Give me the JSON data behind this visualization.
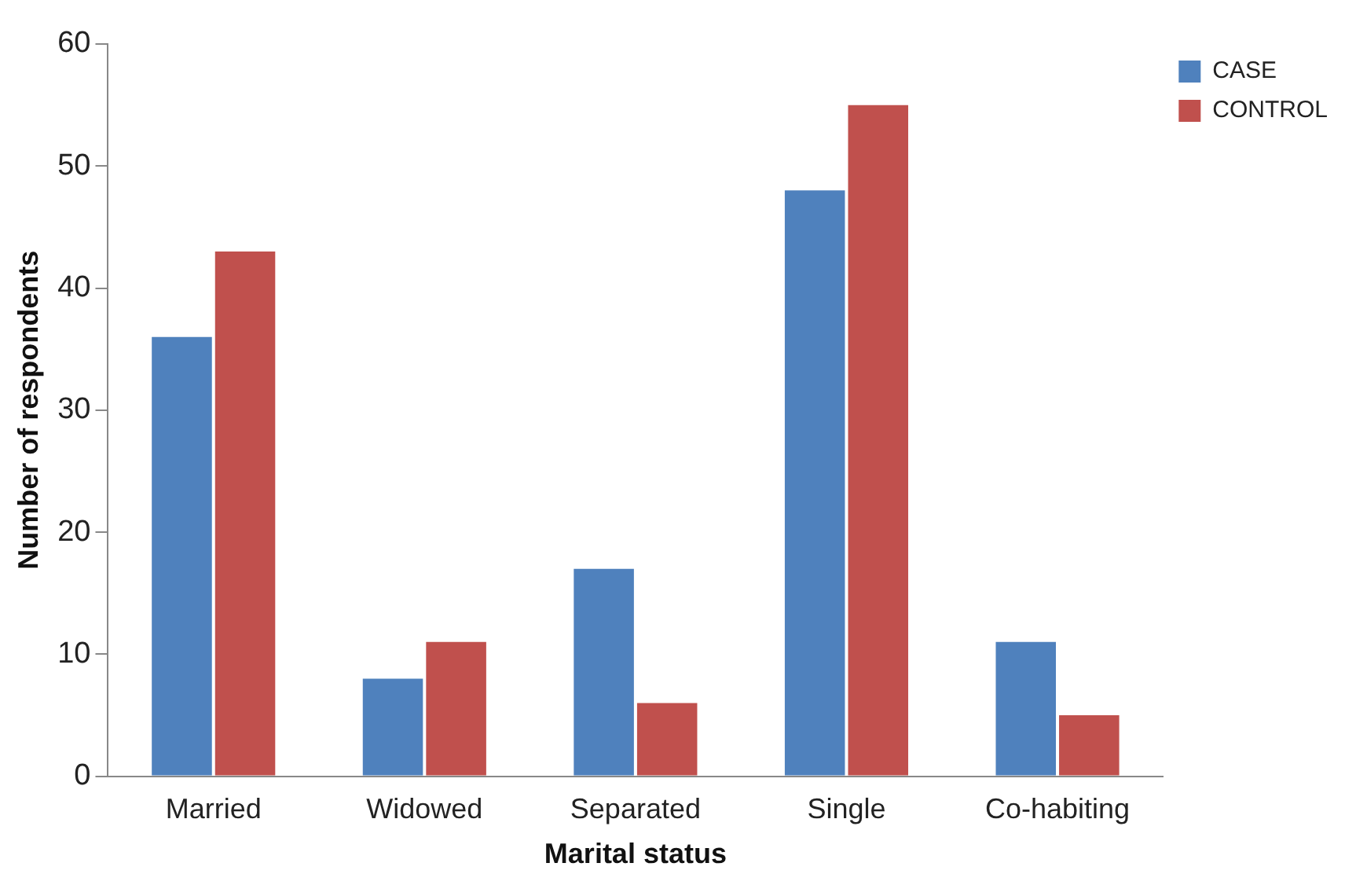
{
  "chart_data": {
    "type": "bar",
    "xlabel": "Marital status",
    "ylabel": "Number of respondents",
    "categories": [
      "Married",
      "Widowed",
      "Separated",
      "Single",
      "Co-habiting"
    ],
    "series": [
      {
        "name": "CASE",
        "color": "#4f81bd",
        "values": [
          36,
          8,
          17,
          48,
          11
        ]
      },
      {
        "name": "CONTROL",
        "color": "#c0504d",
        "values": [
          43,
          11,
          6,
          55,
          5
        ]
      }
    ],
    "ylim": [
      0,
      60
    ],
    "yticks": [
      0,
      10,
      20,
      30,
      40,
      50,
      60
    ],
    "grid": false,
    "legend": "top right"
  }
}
